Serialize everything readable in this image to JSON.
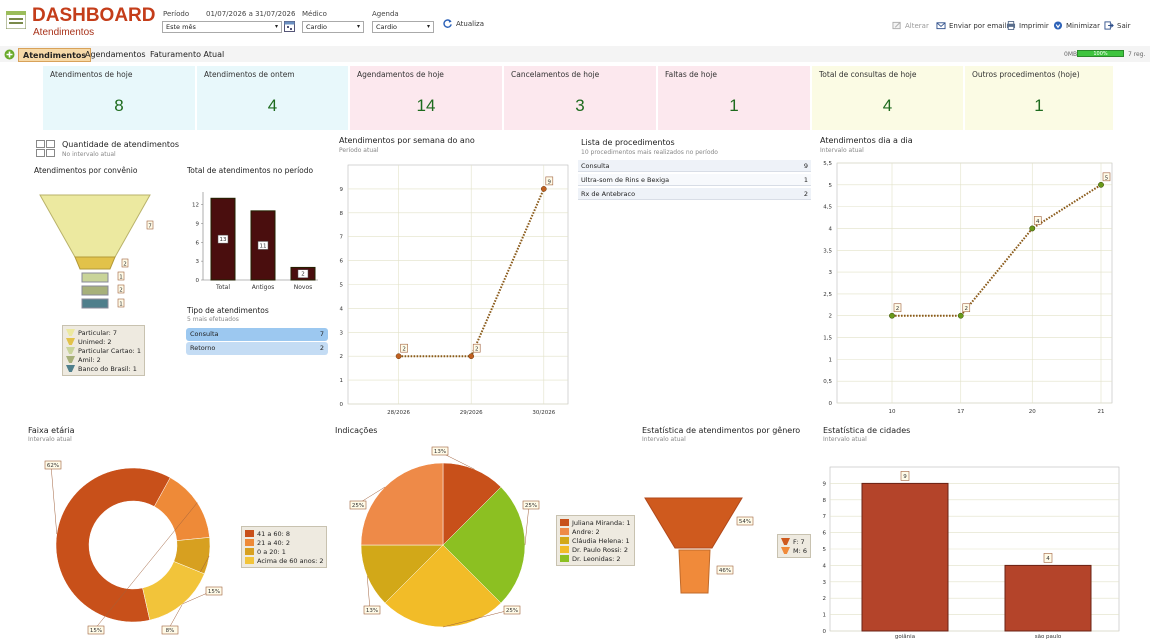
{
  "header": {
    "title": "DASHBOARD",
    "subtitle": "Atendimentos",
    "periodo_label": "Período",
    "periodo_range": "01/07/2026 a 31/07/2026",
    "periodo_value": "Este mês",
    "medico_label": "Médico",
    "medico_value": "Cardio",
    "agenda_label": "Agenda",
    "agenda_value": "Cardio",
    "atualizar_label": "Atualiza",
    "toolbar": {
      "alterar": "Alterar",
      "enviar": "Enviar por email",
      "imprimir": "Imprimir",
      "minimizar": "Minimizar",
      "sair": "Sair"
    },
    "mem_left": "0MB",
    "mem_bar": "100%",
    "mem_right": "7 reg."
  },
  "tabs": [
    "Atendimentos",
    "Agendamentos",
    "Faturamento Atual"
  ],
  "kpis": [
    {
      "label": "Atendimentos de hoje",
      "value": "8",
      "color": "#e8f8fb"
    },
    {
      "label": "Atendimentos de ontem",
      "value": "4",
      "color": "#e8f8fb"
    },
    {
      "label": "Agendamentos de hoje",
      "value": "14",
      "color": "#fce8ee"
    },
    {
      "label": "Cancelamentos de hoje",
      "value": "3",
      "color": "#fce8ee"
    },
    {
      "label": "Faltas de hoje",
      "value": "1",
      "color": "#fce8ee"
    },
    {
      "label": "Total de consultas de hoje",
      "value": "4",
      "color": "#fbfbe4"
    },
    {
      "label": "Outros procedimentos (hoje)",
      "value": "1",
      "color": "#fbfbe4"
    }
  ],
  "panel_qtd": {
    "title": "Quantidade de atendimentos",
    "subtitle": "No intervalo atual",
    "convenio_title": "Atendimentos por convênio",
    "total_title": "Total de atendimentos no período",
    "tipo_title": "Tipo de atendimentos",
    "tipo_subtitle": "5 mais efetuados",
    "tipo_rows": [
      {
        "label": "Consulta",
        "value": "7"
      },
      {
        "label": "Retorno",
        "value": "2"
      }
    ]
  },
  "lista": {
    "title": "Lista de procedimentos",
    "subtitle": "10 procedimentos mais realizados no período",
    "rows": [
      {
        "label": "Consulta",
        "value": "9"
      },
      {
        "label": "Ultra-som de Rins e Bexiga",
        "value": "1"
      },
      {
        "label": "Rx de Antebraco",
        "value": "2"
      }
    ]
  },
  "titles": {
    "semana": "Atendimentos por semana do ano",
    "semana_sub": "Período atual",
    "dia": "Atendimentos dia a dia",
    "dia_sub": "Intervalo atual",
    "faixa": "Faixa etária",
    "faixa_sub": "Intervalo atual",
    "indic": "Indicações",
    "genero": "Estatística de atendimentos por gênero",
    "genero_sub": "Intervalo atual",
    "cidades": "Estatística de cidades",
    "cidades_sub": "Intervalo atual"
  },
  "chart_data": [
    {
      "id": "convenio",
      "type": "funnel",
      "title": "Atendimentos por convênio",
      "labels": [
        "Particular",
        "Unimed",
        "Particular Cartao",
        "Amil",
        "Banco do Brasil"
      ],
      "values": [
        7,
        2,
        1,
        2,
        1
      ],
      "legend": [
        "Particular: 7",
        "Unimed: 2",
        "Particular Cartao: 1",
        "Amil: 2",
        "Banco do Brasil: 1"
      ],
      "colors": [
        "#ece9a0",
        "#e2c24a",
        "#c9d49a",
        "#a7b07a",
        "#4f7f8c"
      ]
    },
    {
      "id": "total",
      "type": "bar",
      "title": "Total de atendimentos no período",
      "categories": [
        "Total",
        "Antigos",
        "Novos"
      ],
      "values": [
        13,
        11,
        2
      ],
      "ylim": [
        0,
        14
      ],
      "yticks": [
        0,
        3,
        6,
        9,
        12
      ]
    },
    {
      "id": "semana",
      "type": "line",
      "title": "Atendimentos por semana do ano",
      "categories": [
        "28/2026",
        "29/2026",
        "30/2026"
      ],
      "values": [
        2,
        2,
        9
      ],
      "ylim": [
        0,
        10
      ],
      "yticks": [
        0,
        1,
        2,
        3,
        4,
        5,
        6,
        7,
        8,
        9
      ]
    },
    {
      "id": "dia",
      "type": "line",
      "title": "Atendimentos dia a dia",
      "categories": [
        "10",
        "17",
        "20",
        "21"
      ],
      "values": [
        2,
        2,
        4,
        5
      ],
      "ylim": [
        0,
        5.5
      ],
      "yticks": [
        "0",
        "0,5",
        "1",
        "1,5",
        "2",
        "2,5",
        "3",
        "3,5",
        "4",
        "4,5",
        "5",
        "5,5"
      ]
    },
    {
      "id": "faixa",
      "type": "pie",
      "title": "Faixa etária",
      "labels": [
        "41 a 60",
        "21 a 40",
        "0 a 20",
        "Acima de 60 anos"
      ],
      "values": [
        8,
        2,
        1,
        2
      ],
      "percent_labels": [
        "62%",
        "15%",
        "8%",
        "15%"
      ],
      "legend": [
        "41 a 60: 8",
        "21 a 40: 2",
        "0 a 20: 1",
        "Acima de 60 anos: 2"
      ],
      "colors": [
        "#c8501a",
        "#ee8a38",
        "#d7a020",
        "#f2c43a"
      ]
    },
    {
      "id": "indicacoes",
      "type": "pie",
      "title": "Indicações",
      "labels": [
        "Juliana Miranda",
        "Andre",
        "Cláudia Helena",
        "Dr. Paulo Rossi",
        "Dr. Leonidas"
      ],
      "values": [
        1,
        2,
        1,
        2,
        2
      ],
      "percent_labels": [
        "13%",
        "25%",
        "13%",
        "25%",
        "25%"
      ],
      "legend": [
        "Juliana Miranda: 1",
        "Andre: 2",
        "Cláudia Helena: 1",
        "Dr. Paulo Rossi: 2",
        "Dr. Leonidas: 2"
      ],
      "colors": [
        "#c8501a",
        "#ee8a48",
        "#d2a818",
        "#f2bc28",
        "#8cc022"
      ]
    },
    {
      "id": "genero",
      "type": "funnel",
      "title": "Estatística de atendimentos por gênero",
      "labels": [
        "F",
        "M"
      ],
      "values": [
        7,
        6
      ],
      "percent_labels": [
        "54%",
        "46%"
      ],
      "legend": [
        "F: 7",
        "M: 6"
      ],
      "colors": [
        "#cf5a1e",
        "#f08a3a"
      ]
    },
    {
      "id": "cidades",
      "type": "bar",
      "title": "Estatística de cidades",
      "categories": [
        "goiânia",
        "são paulo"
      ],
      "values": [
        9,
        4
      ],
      "ylim": [
        0,
        10
      ],
      "yticks": [
        0,
        1,
        2,
        3,
        4,
        5,
        6,
        7,
        8,
        9
      ]
    }
  ]
}
